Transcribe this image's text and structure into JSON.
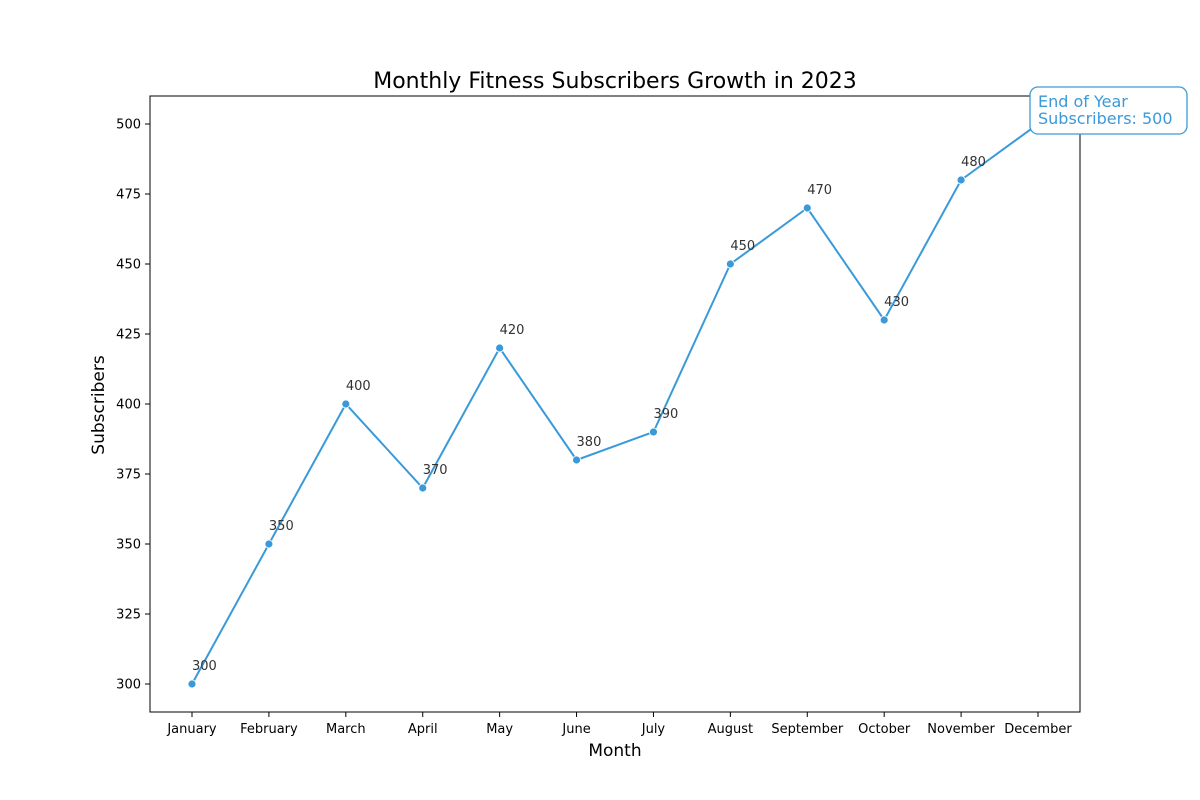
{
  "chart_data": {
    "type": "line",
    "title": "Monthly Fitness Subscribers Growth in 2023",
    "xlabel": "Month",
    "ylabel": "Subscribers",
    "categories": [
      "January",
      "February",
      "March",
      "April",
      "May",
      "June",
      "July",
      "August",
      "September",
      "October",
      "November",
      "December"
    ],
    "series": [
      {
        "values": [
          300,
          350,
          400,
          370,
          420,
          380,
          390,
          450,
          470,
          430,
          480,
          500
        ]
      }
    ],
    "ylim": [
      290,
      510
    ],
    "yticks": [
      300,
      325,
      350,
      375,
      400,
      425,
      450,
      475,
      500
    ],
    "grid": false,
    "line_color": "#3a9ad9",
    "label_color": "#333333",
    "annotation": {
      "line1": "End of Year",
      "line2": "Subscribers: 500",
      "category": "December",
      "color": "#3a9ad9"
    }
  }
}
